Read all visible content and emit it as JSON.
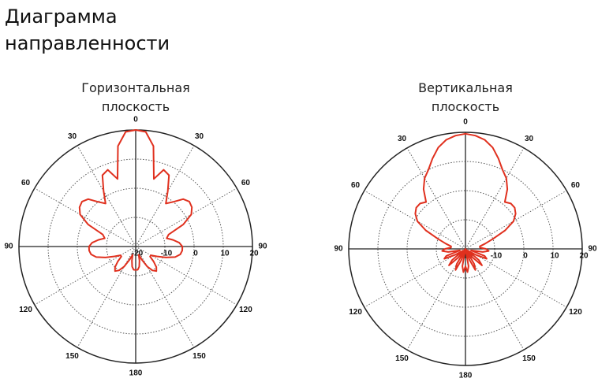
{
  "header": {
    "title": "Диаграмма направленности"
  },
  "chart_data": [
    {
      "type": "polar",
      "title": "Горизонтальная плоскость",
      "color": "#e0301e",
      "theta": [
        0,
        5,
        10,
        15,
        20,
        25,
        30,
        35,
        40,
        45,
        50,
        55,
        60,
        65,
        70,
        75,
        80,
        85,
        90,
        95,
        100,
        105,
        110,
        115,
        120,
        125,
        130,
        135,
        140,
        145,
        150,
        155,
        160,
        165,
        170,
        175,
        180,
        185,
        190,
        195,
        200,
        205,
        210,
        215,
        220,
        225,
        230,
        235,
        240,
        245,
        250,
        255,
        260,
        265,
        270,
        275,
        280,
        285,
        290,
        295,
        300,
        305,
        310,
        315,
        320,
        325,
        330,
        335,
        340,
        345,
        350,
        355
      ],
      "values": [
        20,
        19.5,
        15,
        4,
        8,
        7,
        2,
        -2,
        0,
        3,
        4,
        3.5,
        2,
        -2,
        -8,
        -9,
        -7,
        -5,
        -4,
        -4,
        -4.5,
        -6,
        -9,
        -12,
        -14,
        -14,
        -12,
        -10,
        -9,
        -10,
        -12,
        -15,
        -17,
        -15,
        -13,
        -12,
        -12,
        -12,
        -13,
        -15,
        -17,
        -15,
        -12,
        -10,
        -9,
        -10,
        -12,
        -14,
        -14,
        -12,
        -9,
        -6,
        -4.5,
        -4,
        -4,
        -5,
        -7,
        -9,
        -8,
        -2,
        2,
        3.5,
        4,
        3,
        0,
        -2,
        2,
        7,
        8,
        4,
        15,
        19.5
      ],
      "rlim": [
        -20,
        20
      ],
      "rticks": [
        -20,
        -10,
        0,
        10,
        20
      ],
      "thetaticks": [
        0,
        30,
        60,
        90,
        120,
        150,
        180,
        {
          "value": 210,
          "label": "150"
        },
        {
          "value": 240,
          "label": "120"
        },
        {
          "value": 270,
          "label": "90"
        },
        {
          "value": 300,
          "label": "60"
        },
        {
          "value": 330,
          "label": "30"
        }
      ]
    },
    {
      "type": "polar",
      "title": "Вертикальная плоскость",
      "color": "#e0301e",
      "theta": [
        0,
        5,
        10,
        15,
        20,
        25,
        30,
        35,
        40,
        45,
        50,
        55,
        60,
        65,
        70,
        75,
        80,
        85,
        90,
        95,
        100,
        105,
        110,
        115,
        120,
        125,
        130,
        135,
        140,
        145,
        150,
        155,
        160,
        165,
        170,
        175,
        180,
        185,
        190,
        195,
        200,
        205,
        210,
        215,
        220,
        225,
        230,
        235,
        240,
        245,
        250,
        255,
        260,
        265,
        270,
        275,
        280,
        285,
        290,
        295,
        300,
        305,
        310,
        315,
        320,
        325,
        330,
        335,
        340,
        345,
        350,
        355
      ],
      "values": [
        19.5,
        19,
        18,
        16,
        13,
        10,
        8,
        5,
        1,
        2,
        2,
        1,
        -1,
        -5,
        -10,
        -13,
        -15,
        -15,
        -13,
        -12,
        -14,
        -18,
        -13,
        -12,
        -16,
        -19,
        -14,
        -12,
        -16,
        -20,
        -14,
        -12,
        -16,
        -20,
        -14,
        -12,
        -14,
        -12,
        -14,
        -20,
        -16,
        -12,
        -14,
        -20,
        -16,
        -12,
        -14,
        -19,
        -16,
        -12,
        -13,
        -18,
        -14,
        -12,
        -13,
        -15,
        -15,
        -13,
        -10,
        -5,
        -1,
        1,
        2,
        2,
        1,
        5,
        8,
        10,
        13,
        16,
        18,
        19
      ],
      "rlim": [
        -20,
        20
      ],
      "rticks": [
        -20,
        -10,
        0,
        10,
        20
      ],
      "thetaticks": [
        0,
        30,
        60,
        90,
        120,
        150,
        180,
        {
          "value": 210,
          "label": "150"
        },
        {
          "value": 240,
          "label": "120"
        },
        {
          "value": 270,
          "label": "90"
        },
        {
          "value": 300,
          "label": "60"
        },
        {
          "value": 330,
          "label": "30"
        }
      ]
    }
  ]
}
